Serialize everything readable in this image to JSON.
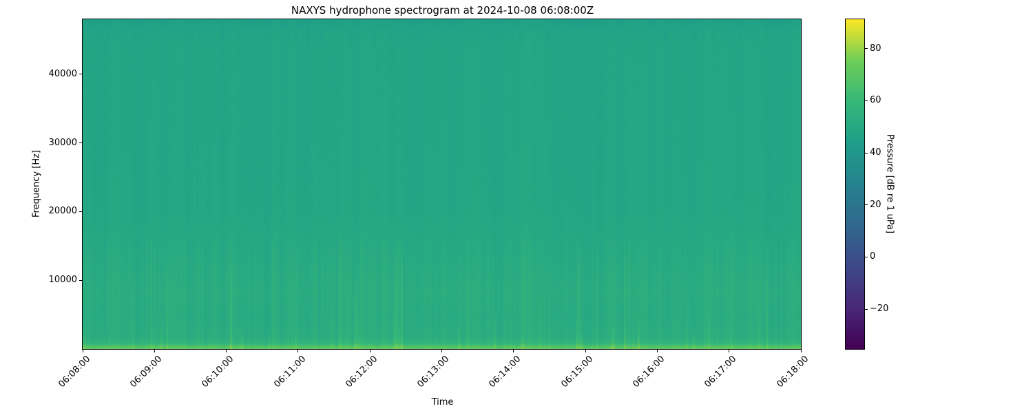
{
  "chart_data": {
    "type": "heatmap",
    "subtype": "spectrogram",
    "title": "NAXYS hydrophone spectrogram at 2024-10-08 06:08:00Z",
    "xlabel": "Time",
    "ylabel": "Frequency [Hz]",
    "x_tick_labels": [
      "06:08:00",
      "06:09:00",
      "06:10:00",
      "06:11:00",
      "06:12:00",
      "06:13:00",
      "06:14:00",
      "06:15:00",
      "06:16:00",
      "06:17:00",
      "06:18:00"
    ],
    "time_range": [
      "06:08:00",
      "06:18:00"
    ],
    "y_tick_values": [
      10000,
      20000,
      30000,
      40000
    ],
    "y_tick_labels": [
      "10000",
      "20000",
      "30000",
      "40000"
    ],
    "freq_range_hz": [
      0,
      48000
    ],
    "grid": false,
    "legend": false,
    "colorbar": {
      "label": "Pressure [dB re 1 uPa]",
      "tick_values": [
        80,
        60,
        40,
        20,
        0,
        -20
      ],
      "tick_labels": [
        "80",
        "60",
        "40",
        "20",
        "0",
        "−20"
      ],
      "vmin_db": -35.3,
      "vmax_db": 91.3,
      "colormap": "viridis",
      "colormap_stops": [
        "#440154",
        "#482878",
        "#3e4989",
        "#31688e",
        "#26828e",
        "#1f9e89",
        "#35b779",
        "#6ece58",
        "#fde725"
      ],
      "position": "right"
    },
    "background_level_db": 48,
    "band_profile_db": [
      {
        "freq_hz": 0,
        "level_db": 72
      },
      {
        "freq_hz": 250,
        "level_db": 69
      },
      {
        "freq_hz": 900,
        "level_db": 57
      },
      {
        "freq_hz": 1800,
        "level_db": 53.5
      },
      {
        "freq_hz": 4500,
        "level_db": 52.3
      },
      {
        "freq_hz": 8500,
        "level_db": 53
      },
      {
        "freq_hz": 14000,
        "level_db": 51
      },
      {
        "freq_hz": 20000,
        "level_db": 48.8
      },
      {
        "freq_hz": 30000,
        "level_db": 48.3
      },
      {
        "freq_hz": 44000,
        "level_db": 48.1
      },
      {
        "freq_hz": 46200,
        "level_db": 47.3
      },
      {
        "freq_hz": 47300,
        "level_db": 45.8
      },
      {
        "freq_hz": 48000,
        "level_db": 45
      }
    ],
    "texture": {
      "vertical_striping_db": 1.5,
      "low_freq_striping_boost_db": 1.9,
      "transient_column_count": 52,
      "fine_noise_db": 0.6
    }
  }
}
